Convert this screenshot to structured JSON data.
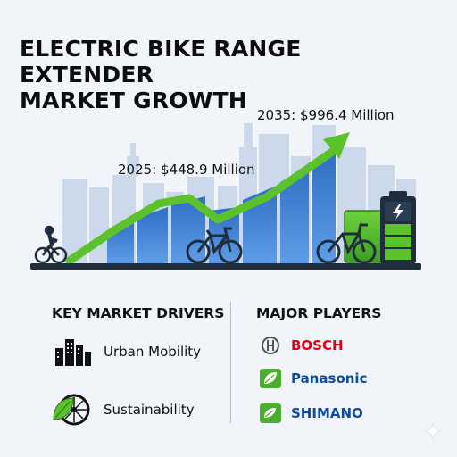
{
  "title": {
    "line1": "ELECTRIC BIKE RANGE EXTENDER",
    "line2": "MARKET GROWTH"
  },
  "annotations": {
    "value_2025": "2025: $448.9 Million",
    "value_2035": "2035: $996.4 Million"
  },
  "drivers": {
    "heading": "KEY MARKET DRIVERS",
    "items": [
      {
        "label": "Urban Mobility",
        "icon": "city-buildings-icon"
      },
      {
        "label": "Sustainability",
        "icon": "leaf-wheel-icon"
      }
    ]
  },
  "players": {
    "heading": "MAJOR PLAYERS",
    "items": [
      {
        "label": "BOSCH",
        "icon": "bosch-logo-icon",
        "color": "#e20015"
      },
      {
        "label": "Panasonic",
        "icon": "panasonic-leaf-icon",
        "color": "#0c4da2"
      },
      {
        "label": "SHIMANO",
        "icon": "shimano-logo-icon",
        "color": "#0c4da2"
      }
    ]
  },
  "colors": {
    "background": "#f1f4f8",
    "bar_blue": "#2f6fc4",
    "growth_arrow": "#5cc22c",
    "battery": "#4cae2f"
  }
}
